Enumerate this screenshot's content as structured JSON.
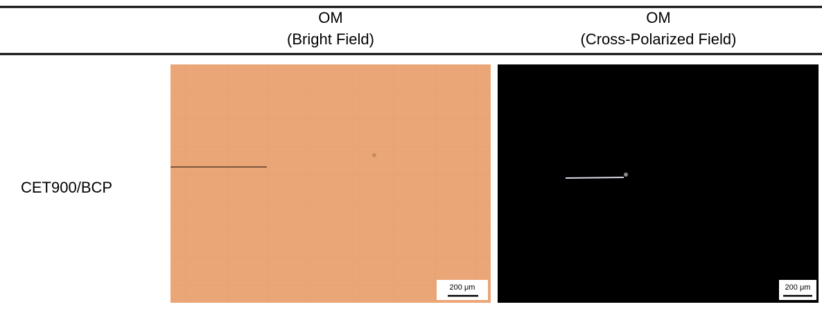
{
  "table": {
    "header": [
      {
        "title": "OM",
        "subtitle": "(Bright Field)"
      },
      {
        "title": "OM",
        "subtitle": "(Cross-Polarized Field)"
      }
    ],
    "rows": [
      {
        "label": "CET900/BCP",
        "scale_bars": [
          "200 μm",
          "200 μm"
        ]
      }
    ]
  }
}
